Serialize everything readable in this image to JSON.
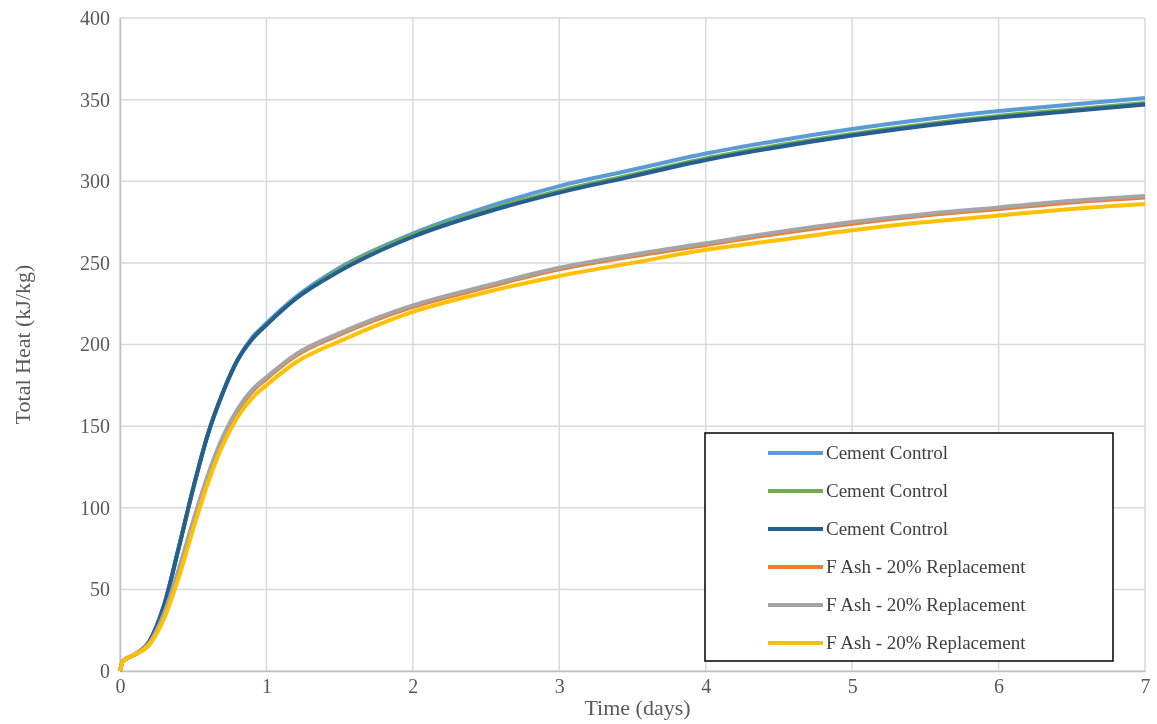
{
  "chart_data": {
    "type": "line",
    "xlabel": "Time (days)",
    "ylabel": "Total Heat (kJ/kg)",
    "xlim": [
      0,
      7
    ],
    "xticks": [
      0,
      1,
      2,
      3,
      4,
      5,
      6,
      7
    ],
    "ylim": [
      0,
      400
    ],
    "yticks": [
      0,
      50,
      100,
      150,
      200,
      250,
      300,
      350,
      400
    ],
    "grid": true,
    "legend": "bottom right",
    "marker": "none",
    "line_style": "solid",
    "x": [
      0,
      0.02,
      0.1,
      0.2,
      0.3,
      0.4,
      0.5,
      0.6,
      0.7,
      0.8,
      0.9,
      1,
      1.2,
      1.5,
      2,
      2.5,
      3,
      3.5,
      4,
      4.5,
      5,
      5.5,
      6,
      6.5,
      7
    ],
    "series": [
      {
        "name": "Cement Control",
        "color": "#5b9bd5",
        "values": [
          null,
          null,
          10,
          18,
          40,
          75,
          112,
          145,
          170,
          190,
          204,
          213,
          229,
          247,
          268,
          284,
          297,
          307,
          317,
          325,
          332,
          338,
          343,
          347,
          351
        ]
      },
      {
        "name": "Cement Control",
        "color": "#70ad47",
        "values": [
          0,
          6,
          10,
          18,
          40,
          75,
          112,
          145,
          170,
          190,
          203,
          212,
          228,
          246,
          267,
          282,
          294,
          304,
          314,
          322,
          329,
          335,
          340,
          344,
          348
        ]
      },
      {
        "name": "Cement Control",
        "color": "#255e91",
        "values": [
          0,
          6,
          10,
          18,
          40,
          75,
          112,
          145,
          170,
          190,
          203,
          212,
          228,
          245,
          266,
          281,
          293,
          303,
          313,
          321,
          328,
          334,
          339,
          343,
          347
        ]
      },
      {
        "name": "F Ash - 20% Replacement",
        "color": "#ed7d31",
        "values": [
          0,
          6,
          10,
          17,
          34,
          61,
          91,
          119,
          142,
          159,
          171,
          179,
          193,
          206,
          223,
          235,
          246,
          254,
          261,
          268,
          274,
          279,
          283,
          287,
          290
        ]
      },
      {
        "name": "F Ash - 20% Replacement",
        "color": "#a5a5a5",
        "values": [
          0,
          6,
          10,
          17,
          35,
          62,
          92,
          120,
          143,
          160,
          172,
          180,
          194,
          207,
          224,
          236,
          247,
          255,
          262,
          269,
          275,
          280,
          284,
          288,
          291
        ]
      },
      {
        "name": "F Ash - 20% Replacement",
        "color": "#ffc000",
        "values": [
          0,
          6,
          10,
          16,
          32,
          57,
          87,
          115,
          138,
          155,
          167,
          175,
          189,
          202,
          220,
          232,
          242,
          250,
          258,
          264,
          270,
          275,
          279,
          283,
          286
        ]
      }
    ]
  }
}
